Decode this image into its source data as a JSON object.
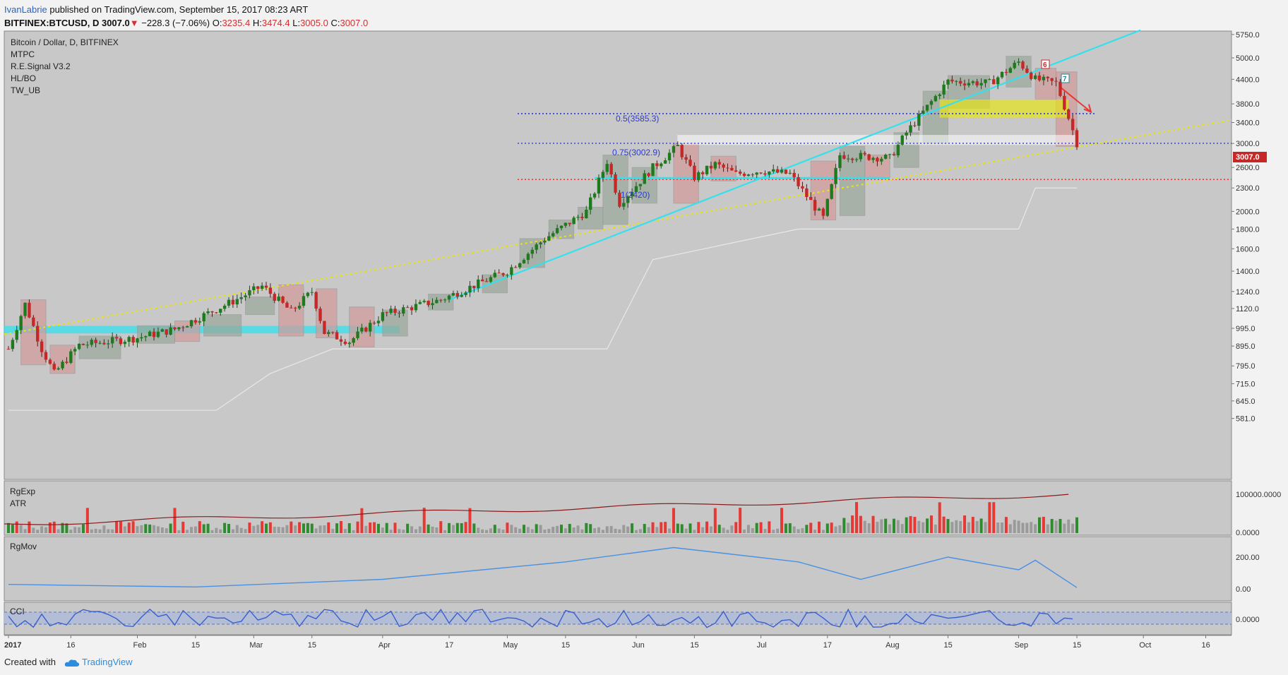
{
  "header": {
    "author": "IvanLabrie",
    "published": "published on TradingView.com, September 15, 2017 08:23 ART",
    "symbol": "BITFINEX:BTCUSD, D",
    "last": "3007.0",
    "change": "−228.3 (−7.06%)",
    "o_label": "O:",
    "o_val": "3235.4",
    "h_label": "H:",
    "h_val": "3474.4",
    "l_label": "L:",
    "l_val": "3005.0",
    "c_label": "C:",
    "c_val": "3007.0"
  },
  "legend": {
    "title": "Bitcoin / Dollar, D, BITFINEX",
    "studies": [
      "MTPC",
      "R.E.Signal V3.2",
      "HL/BO",
      "TW_UB"
    ]
  },
  "annotations": {
    "fib_05": "0.5(3585.3)",
    "fib_075": "0.75(3002.9)",
    "fib_1": "1(2420)",
    "mark_6": "6",
    "mark_7": "7"
  },
  "last_price_label": "3007.0",
  "panes": {
    "rgexp": [
      "RgExp",
      "ATR"
    ],
    "rgmov": "RgMov",
    "cci": "CCI"
  },
  "footer": {
    "created": "Created with",
    "brand": "TradingView"
  },
  "colors": {
    "up": "#1f7a1f",
    "down": "#c62828",
    "bg": "#c8c8c8",
    "fib_blue": "#2b3bd6",
    "fib_red": "#e53935",
    "cyan": "#35e0ee",
    "yellow": "#e6e21a",
    "atr_line": "#8b1a1a",
    "mov_line": "#4a90e2",
    "cci_line": "#3a5fcd"
  },
  "chart_data": [
    {
      "type": "candlestick",
      "title": "Bitcoin / Dollar, D, BITFINEX",
      "scale": "log",
      "ylim": [
        560,
        5900
      ],
      "y_ticks": [
        "5750.0",
        "5000.0",
        "4400.0",
        "3800.0",
        "3400.0",
        "3000.0",
        "2600.0",
        "2300.0",
        "2000.0",
        "1800.0",
        "1600.0",
        "1400.0",
        "1240.0",
        "1120.0",
        "995.0",
        "895.0",
        "795.0",
        "715.0",
        "645.0",
        "581.0"
      ],
      "x_ticks": [
        "2017",
        "16",
        "Feb",
        "15",
        "Mar",
        "15",
        "Apr",
        "17",
        "May",
        "15",
        "Jun",
        "15",
        "Jul",
        "17",
        "Aug",
        "15",
        "Sep",
        "15",
        "Oct",
        "16"
      ],
      "close_path": [
        [
          "2017-01-01",
          880
        ],
        [
          "2017-01-05",
          1150
        ],
        [
          "2017-01-09",
          880
        ],
        [
          "2017-01-12",
          760
        ],
        [
          "2017-01-18",
          900
        ],
        [
          "2017-02-01",
          940
        ],
        [
          "2017-02-10",
          990
        ],
        [
          "2017-02-24",
          1170
        ],
        [
          "2017-03-03",
          1280
        ],
        [
          "2017-03-10",
          1100
        ],
        [
          "2017-03-15",
          1240
        ],
        [
          "2017-03-18",
          970
        ],
        [
          "2017-03-24",
          920
        ],
        [
          "2017-04-01",
          1080
        ],
        [
          "2017-04-15",
          1180
        ],
        [
          "2017-05-01",
          1400
        ],
        [
          "2017-05-10",
          1700
        ],
        [
          "2017-05-20",
          2000
        ],
        [
          "2017-05-25",
          2700
        ],
        [
          "2017-05-28",
          2100
        ],
        [
          "2017-06-05",
          2600
        ],
        [
          "2017-06-11",
          2950
        ],
        [
          "2017-06-15",
          2450
        ],
        [
          "2017-06-20",
          2650
        ],
        [
          "2017-06-25",
          2500
        ],
        [
          "2017-07-01",
          2550
        ],
        [
          "2017-07-08",
          2500
        ],
        [
          "2017-07-16",
          1920
        ],
        [
          "2017-07-20",
          2800
        ],
        [
          "2017-08-01",
          2750
        ],
        [
          "2017-08-05",
          3200
        ],
        [
          "2017-08-15",
          4350
        ],
        [
          "2017-08-25",
          4300
        ],
        [
          "2017-09-01",
          4880
        ],
        [
          "2017-09-05",
          4400
        ],
        [
          "2017-09-10",
          4300
        ],
        [
          "2017-09-13",
          3500
        ],
        [
          "2017-09-15",
          3007
        ]
      ],
      "levels": {
        "fib_0.5": 3585.3,
        "fib_0.75": 3002.9,
        "fib_1": 2420,
        "last": 3007.0
      }
    },
    {
      "type": "bar",
      "title": "RgExp / ATR",
      "y_ticks": [
        "100000.0000",
        "0.0000"
      ]
    },
    {
      "type": "line",
      "title": "RgMov",
      "y_ticks": [
        "200.00",
        "0.00"
      ]
    },
    {
      "type": "line",
      "title": "CCI",
      "y_ticks": [
        "0.0000"
      ]
    }
  ]
}
